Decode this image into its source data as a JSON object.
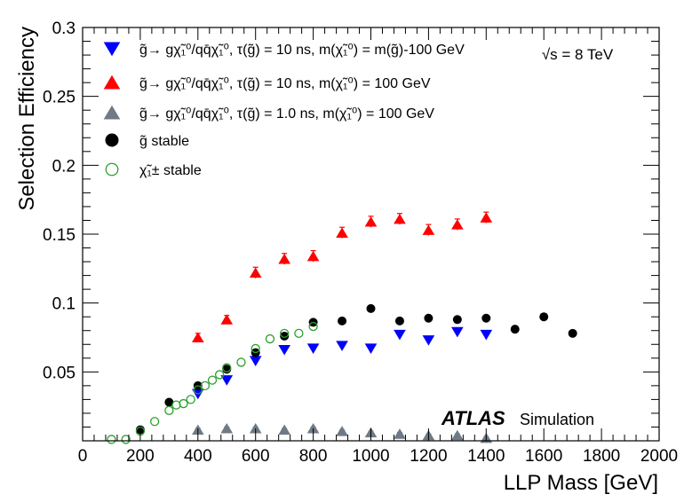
{
  "chart_data": {
    "type": "scatter",
    "title": "",
    "xlabel": "LLP Mass [GeV]",
    "ylabel": "Selection Efficiency",
    "xlim": [
      0,
      2000
    ],
    "ylim": [
      0,
      0.3
    ],
    "xticks": [
      0,
      200,
      400,
      600,
      800,
      1000,
      1200,
      1400,
      1600,
      1800,
      2000
    ],
    "yticks": [
      0.05,
      0.1,
      0.15,
      0.2,
      0.25,
      0.3
    ],
    "ytick_labels": [
      "0.05",
      "0.1",
      "0.15",
      "0.2",
      "0.25",
      "0.3"
    ],
    "grid": false,
    "legend_position": "top-left",
    "annotations": {
      "energy": "√s = 8 TeV",
      "experiment": "ATLAS",
      "experiment_suffix": "Simulation"
    },
    "series": [
      {
        "name": "g̃→ gχ̃₁⁰/qq̄χ̃₁⁰, τ(g̃) = 10 ns, m(χ̃₁⁰) = m(g̃)-100 GeV",
        "marker": "triangle-down",
        "color": "#0000ff",
        "filled": true,
        "x": [
          400,
          500,
          600,
          700,
          800,
          900,
          1000,
          1100,
          1200,
          1300,
          1400
        ],
        "y": [
          0.034,
          0.044,
          0.058,
          0.066,
          0.067,
          0.069,
          0.067,
          0.077,
          0.073,
          0.079,
          0.077
        ],
        "err": [
          0.002,
          0.002,
          0.002,
          0.002,
          0.002,
          0.002,
          0.002,
          0.002,
          0.002,
          0.002,
          0.003
        ]
      },
      {
        "name": "g̃→ gχ̃₁⁰/qq̄χ̃₁⁰, τ(g̃) = 10 ns, m(χ̃₁⁰) = 100 GeV",
        "marker": "triangle-up",
        "color": "#ff0000",
        "filled": true,
        "x": [
          400,
          500,
          600,
          700,
          800,
          900,
          1000,
          1100,
          1200,
          1300,
          1400
        ],
        "y": [
          0.075,
          0.088,
          0.122,
          0.132,
          0.134,
          0.151,
          0.159,
          0.161,
          0.153,
          0.157,
          0.162
        ],
        "err": [
          0.003,
          0.003,
          0.004,
          0.004,
          0.004,
          0.004,
          0.004,
          0.004,
          0.004,
          0.004,
          0.004
        ]
      },
      {
        "name": "g̃→ gχ̃₁⁰/qq̄χ̃₁⁰, τ(g̃) = 1.0 ns, m(χ̃₁⁰) = 100 GeV",
        "marker": "triangle-up",
        "color": "#6f7a86",
        "filled": true,
        "x": [
          400,
          500,
          600,
          700,
          800,
          900,
          1000,
          1100,
          1200,
          1300,
          1400
        ],
        "y": [
          0.008,
          0.009,
          0.009,
          0.008,
          0.009,
          0.007,
          0.006,
          0.005,
          0.004,
          0.004,
          0.002
        ],
        "err": [
          0.001,
          0.001,
          0.001,
          0.001,
          0.001,
          0.001,
          0.001,
          0.001,
          0.001,
          0.001,
          0.001
        ]
      },
      {
        "name": "g̃ stable",
        "marker": "circle",
        "color": "#000000",
        "filled": true,
        "x": [
          200,
          300,
          400,
          500,
          600,
          700,
          800,
          900,
          1000,
          1100,
          1200,
          1300,
          1400,
          1500,
          1600,
          1700
        ],
        "y": [
          0.008,
          0.028,
          0.04,
          0.052,
          0.064,
          0.076,
          0.086,
          0.087,
          0.096,
          0.087,
          0.089,
          0.088,
          0.089,
          0.081,
          0.09,
          0.078
        ],
        "err": []
      },
      {
        "name": "χ̃₁± stable",
        "marker": "circle-open",
        "color": "#2ca02c",
        "filled": false,
        "x": [
          100,
          150,
          200,
          250,
          300,
          325,
          350,
          375,
          400,
          425,
          450,
          475,
          500,
          550,
          600,
          650,
          700,
          750,
          800
        ],
        "y": [
          0.001,
          0.001,
          0.007,
          0.014,
          0.022,
          0.026,
          0.027,
          0.03,
          0.037,
          0.04,
          0.044,
          0.048,
          0.053,
          0.057,
          0.067,
          0.074,
          0.078,
          0.078,
          0.083
        ],
        "err": []
      }
    ]
  }
}
